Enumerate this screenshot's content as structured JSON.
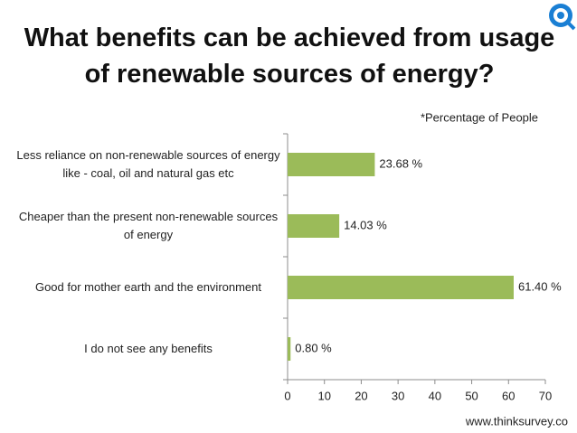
{
  "chart_data": {
    "type": "bar",
    "orientation": "horizontal",
    "title": "What benefits can be achieved from usage of renewable sources of energy?",
    "annotation": "*Percentage of People",
    "source": "www.thinksurvey.co",
    "categories": [
      "Less reliance on non-renewable sources of energy like - coal, oil and natural gas etc",
      "Cheaper than the present non-renewable sources of energy",
      "Good for mother earth and the environment",
      "I do not see any benefits"
    ],
    "values": [
      23.68,
      14.03,
      61.4,
      0.8
    ],
    "value_labels": [
      "23.68 %",
      "14.03 %",
      "61.40 %",
      "0.80 %"
    ],
    "color": "#9bbb59",
    "xlim": [
      0,
      70
    ],
    "xticks": [
      0,
      10,
      20,
      30,
      40,
      50,
      60,
      70
    ],
    "grid": false
  }
}
